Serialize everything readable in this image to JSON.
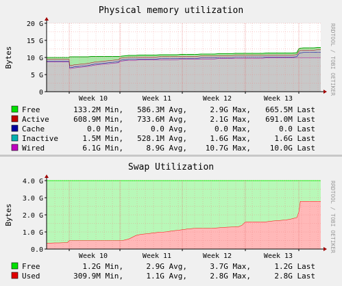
{
  "chart_data": [
    {
      "type": "area",
      "title": "Physical memory utilization",
      "ylabel": "Bytes",
      "ylim": [
        0,
        20
      ],
      "y_unit": "G",
      "yticks": [
        "0",
        "5 G",
        "10 G",
        "15 G",
        "20 G"
      ],
      "xticks": [
        "Week 10",
        "Week 11",
        "Week 12",
        "Week 13"
      ],
      "side_label": "RRDTOOL / TOBI OETIKER",
      "stacked": true,
      "grid": true,
      "x": [
        0,
        5,
        10,
        15,
        20,
        25,
        30,
        33,
        34,
        35,
        38,
        40,
        45,
        50,
        55,
        60,
        65,
        70,
        75,
        80,
        85,
        90,
        95,
        100,
        105,
        107,
        110,
        115,
        120,
        125,
        130,
        135,
        140,
        145,
        150,
        155,
        160,
        165,
        170,
        175,
        180,
        185,
        190,
        195,
        200,
        205,
        210,
        215,
        220,
        225,
        230,
        235,
        240,
        245,
        250,
        255,
        260,
        265,
        270,
        275,
        280,
        285,
        290,
        295,
        300,
        305,
        310,
        315,
        320,
        325,
        330,
        335,
        340,
        345,
        350,
        355,
        360,
        365,
        368,
        370,
        375,
        380,
        385,
        390,
        395,
        398,
        400
      ],
      "series": [
        {
          "name": "Wired",
          "color": "#a000a0",
          "values": [
            8.7,
            8.7,
            8.7,
            8.7,
            8.7,
            8.7,
            8.7,
            8.7,
            6.8,
            6.8,
            6.9,
            7.0,
            7.1,
            7.2,
            7.3,
            7.4,
            7.6,
            7.8,
            7.9,
            8.0,
            8.1,
            8.2,
            8.3,
            8.4,
            8.5,
            8.9,
            9.0,
            9.1,
            9.2,
            9.2,
            9.2,
            9.3,
            9.3,
            9.3,
            9.3,
            9.3,
            9.3,
            9.4,
            9.4,
            9.4,
            9.4,
            9.4,
            9.4,
            9.5,
            9.5,
            9.5,
            9.5,
            9.5,
            9.5,
            9.6,
            9.6,
            9.6,
            9.6,
            9.6,
            9.7,
            9.7,
            9.7,
            9.7,
            9.7,
            9.8,
            9.8,
            9.8,
            9.8,
            9.8,
            9.8,
            9.8,
            9.8,
            9.8,
            9.9,
            9.9,
            9.9,
            9.9,
            9.9,
            9.9,
            9.9,
            9.9,
            9.9,
            10.0,
            10.0,
            10.0,
            10.0,
            10.0,
            10.0,
            10.0,
            10.0,
            10.0,
            10.0
          ]
        },
        {
          "name": "Inactive",
          "color": "#00a0a0",
          "values": [
            0.2,
            0.2,
            0.2,
            0.2,
            0.2,
            0.2,
            0.2,
            0.2,
            0.3,
            0.3,
            0.3,
            0.3,
            0.3,
            0.3,
            0.3,
            0.3,
            0.3,
            0.3,
            0.3,
            0.3,
            0.3,
            0.3,
            0.3,
            0.3,
            0.3,
            0.3,
            0.3,
            0.3,
            0.3,
            0.3,
            0.3,
            0.3,
            0.3,
            0.3,
            0.3,
            0.3,
            0.3,
            0.3,
            0.3,
            0.3,
            0.3,
            0.3,
            0.3,
            0.3,
            0.3,
            0.3,
            0.3,
            0.3,
            0.3,
            0.3,
            0.3,
            0.3,
            0.3,
            0.3,
            0.3,
            0.3,
            0.3,
            0.3,
            0.3,
            0.3,
            0.3,
            0.3,
            0.3,
            0.3,
            0.3,
            0.3,
            0.3,
            0.3,
            0.3,
            0.3,
            0.3,
            0.3,
            0.3,
            0.3,
            0.3,
            0.3,
            0.3,
            0.3,
            1.2,
            1.4,
            1.5,
            1.5,
            1.5,
            1.5,
            1.6,
            1.6,
            1.6
          ]
        },
        {
          "name": "Cache",
          "color": "#0000a0",
          "values": [
            0,
            0,
            0,
            0,
            0,
            0,
            0,
            0,
            0,
            0,
            0,
            0,
            0,
            0,
            0,
            0,
            0,
            0,
            0,
            0,
            0,
            0,
            0,
            0,
            0,
            0,
            0,
            0,
            0,
            0,
            0,
            0,
            0,
            0,
            0,
            0,
            0,
            0,
            0,
            0,
            0,
            0,
            0,
            0,
            0,
            0,
            0,
            0,
            0,
            0,
            0,
            0,
            0,
            0,
            0,
            0,
            0,
            0,
            0,
            0,
            0,
            0,
            0,
            0,
            0,
            0,
            0,
            0,
            0,
            0,
            0,
            0,
            0,
            0,
            0,
            0,
            0,
            0,
            0,
            0,
            0,
            0,
            0,
            0,
            0,
            0,
            0
          ]
        },
        {
          "name": "Active",
          "color": "#a00000",
          "values": [
            0.6,
            0.6,
            0.6,
            0.6,
            0.6,
            0.6,
            0.6,
            0.6,
            0.6,
            0.6,
            0.6,
            0.6,
            0.6,
            0.6,
            0.6,
            0.6,
            0.6,
            0.6,
            0.6,
            0.6,
            0.6,
            0.6,
            0.6,
            0.6,
            0.6,
            0.6,
            0.6,
            0.6,
            0.6,
            0.6,
            0.6,
            0.6,
            0.6,
            0.6,
            0.6,
            0.6,
            0.6,
            0.6,
            0.6,
            0.6,
            0.6,
            0.6,
            0.6,
            0.6,
            0.6,
            0.6,
            0.6,
            0.6,
            0.6,
            0.6,
            0.6,
            0.6,
            0.6,
            0.6,
            0.6,
            0.6,
            0.6,
            0.6,
            0.6,
            0.6,
            0.6,
            0.6,
            0.6,
            0.6,
            0.6,
            0.6,
            0.6,
            0.6,
            0.6,
            0.6,
            0.6,
            0.6,
            0.6,
            0.6,
            0.6,
            0.6,
            0.6,
            0.6,
            0.7,
            0.7,
            0.7,
            0.7,
            0.7,
            0.7,
            0.7,
            0.7,
            0.7
          ]
        },
        {
          "name": "Free",
          "color": "#00a000",
          "values": [
            0.5,
            0.5,
            0.5,
            0.5,
            0.5,
            0.5,
            0.5,
            0.5,
            2.5,
            2.5,
            2.4,
            2.3,
            2.2,
            2.1,
            2.0,
            1.9,
            1.8,
            1.6,
            1.5,
            1.4,
            1.3,
            1.2,
            1.1,
            1.0,
            0.9,
            0.5,
            0.5,
            0.5,
            0.5,
            0.5,
            0.5,
            0.5,
            0.5,
            0.5,
            0.5,
            0.5,
            0.5,
            0.5,
            0.5,
            0.5,
            0.5,
            0.5,
            0.5,
            0.5,
            0.5,
            0.5,
            0.5,
            0.5,
            0.5,
            0.5,
            0.5,
            0.5,
            0.5,
            0.5,
            0.5,
            0.5,
            0.5,
            0.5,
            0.5,
            0.5,
            0.5,
            0.5,
            0.5,
            0.5,
            0.5,
            0.5,
            0.5,
            0.5,
            0.5,
            0.5,
            0.5,
            0.5,
            0.5,
            0.5,
            0.5,
            0.5,
            0.5,
            0.5,
            0.6,
            0.6,
            0.6,
            0.6,
            0.6,
            0.6,
            0.6,
            0.6,
            0.6
          ]
        }
      ],
      "legend": [
        {
          "name": "Free",
          "color": "#00e000",
          "min": "133.2M Min,",
          "avg": "586.3M Avg,",
          "max": "2.9G Max,",
          "last": "665.5M Last"
        },
        {
          "name": "Active",
          "color": "#c00000",
          "min": "608.9M Min,",
          "avg": "733.6M Avg,",
          "max": "2.1G Max,",
          "last": "691.0M Last"
        },
        {
          "name": "Cache",
          "color": "#0000a0",
          "min": "0.0 Min,",
          "avg": "0.0 Avg,",
          "max": "0.0 Max,",
          "last": "0.0 Last"
        },
        {
          "name": "Inactive",
          "color": "#00b0b0",
          "min": "1.5M Min,",
          "avg": "528.1M Avg,",
          "max": "1.6G Max,",
          "last": "1.6G Last"
        },
        {
          "name": "Wired",
          "color": "#c000c0",
          "min": "6.1G Min,",
          "avg": "8.9G Avg,",
          "max": "10.7G Max,",
          "last": "10.0G Last"
        }
      ]
    },
    {
      "type": "area",
      "title": "Swap Utilization",
      "ylabel": "Bytes",
      "ylim": [
        0,
        4
      ],
      "y_unit": "G",
      "yticks": [
        "0.0",
        "1.0 G",
        "2.0 G",
        "3.0 G",
        "4.0 G"
      ],
      "xticks": [
        "Week 10",
        "Week 11",
        "Week 12",
        "Week 13"
      ],
      "side_label": "RRDTOOL / TOBI OETIKER",
      "stacked": true,
      "grid": true,
      "x": [
        0,
        6,
        12,
        18,
        24,
        30,
        33,
        40,
        50,
        60,
        70,
        80,
        90,
        100,
        110,
        115,
        120,
        125,
        130,
        135,
        140,
        145,
        150,
        155,
        160,
        165,
        170,
        175,
        180,
        185,
        190,
        200,
        205,
        210,
        215,
        220,
        225,
        230,
        240,
        250,
        260,
        270,
        280,
        285,
        290,
        295,
        300,
        305,
        310,
        320,
        330,
        340,
        345,
        350,
        355,
        360,
        365,
        368,
        370,
        375,
        380,
        385,
        390,
        395,
        400
      ],
      "series": [
        {
          "name": "Used",
          "color": "#ff0000",
          "values": [
            0.35,
            0.36,
            0.37,
            0.37,
            0.38,
            0.38,
            0.5,
            0.5,
            0.5,
            0.5,
            0.5,
            0.5,
            0.5,
            0.5,
            0.5,
            0.55,
            0.6,
            0.7,
            0.8,
            0.85,
            0.88,
            0.9,
            0.92,
            0.95,
            0.97,
            1.0,
            1.0,
            1.02,
            1.05,
            1.08,
            1.1,
            1.15,
            1.18,
            1.2,
            1.22,
            1.22,
            1.22,
            1.22,
            1.22,
            1.25,
            1.28,
            1.3,
            1.32,
            1.4,
            1.6,
            1.6,
            1.6,
            1.6,
            1.6,
            1.6,
            1.65,
            1.68,
            1.7,
            1.72,
            1.75,
            1.8,
            1.85,
            2.2,
            2.8,
            2.8,
            2.8,
            2.8,
            2.8,
            2.8,
            2.8
          ]
        },
        {
          "name": "Free",
          "color": "#00ff00",
          "values": [
            3.65,
            3.64,
            3.63,
            3.63,
            3.62,
            3.62,
            3.5,
            3.5,
            3.5,
            3.5,
            3.5,
            3.5,
            3.5,
            3.5,
            3.5,
            3.45,
            3.4,
            3.3,
            3.2,
            3.15,
            3.12,
            3.1,
            3.08,
            3.05,
            3.03,
            3.0,
            3.0,
            2.98,
            2.95,
            2.92,
            2.9,
            2.85,
            2.82,
            2.8,
            2.78,
            2.78,
            2.78,
            2.78,
            2.78,
            2.75,
            2.72,
            2.7,
            2.68,
            2.6,
            2.4,
            2.4,
            2.4,
            2.4,
            2.4,
            2.4,
            2.35,
            2.32,
            2.3,
            2.28,
            2.25,
            2.2,
            2.15,
            1.8,
            1.2,
            1.2,
            1.2,
            1.2,
            1.2,
            1.2,
            1.2
          ]
        }
      ],
      "legend": [
        {
          "name": "Free",
          "color": "#00e000",
          "min": "1.2G Min,",
          "avg": "2.9G Avg,",
          "max": "3.7G Max,",
          "last": "1.2G Last"
        },
        {
          "name": "Used",
          "color": "#e00000",
          "min": "309.9M Min,",
          "avg": "1.1G Avg,",
          "max": "2.8G Max,",
          "last": "2.8G Last"
        }
      ]
    }
  ]
}
